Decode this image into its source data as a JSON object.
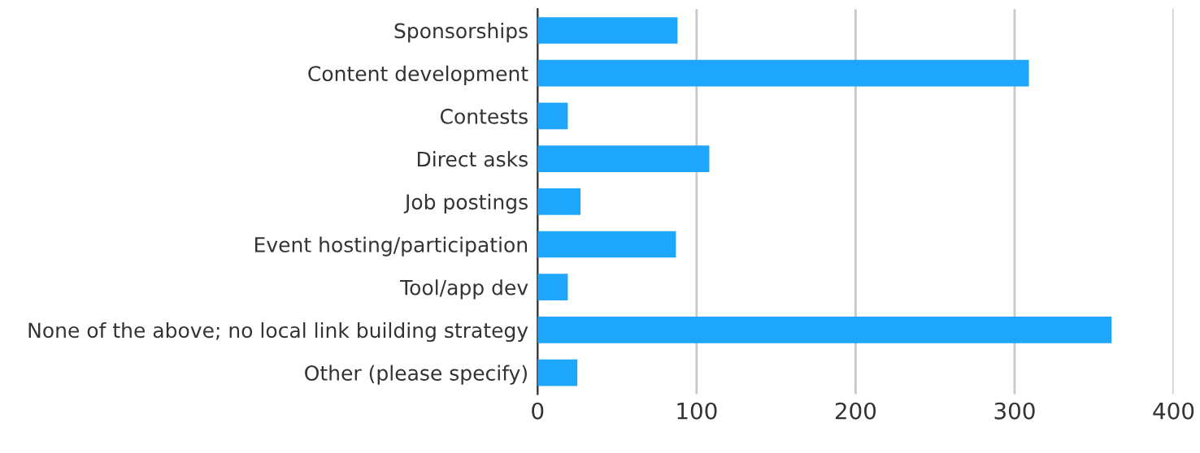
{
  "chart_data": {
    "type": "bar",
    "orientation": "horizontal",
    "categories": [
      "Sponsorships",
      "Content development",
      "Contests",
      "Direct asks",
      "Job postings",
      "Event hosting/participation",
      "Tool/app dev",
      "None of the above; no local link building strategy",
      "Other (please specify)"
    ],
    "values": [
      88,
      309,
      19,
      108,
      27,
      87,
      19,
      361,
      25
    ],
    "color": "#1ea5fc",
    "xlim": [
      0,
      400
    ],
    "xticks": [
      0,
      100,
      200,
      300,
      400
    ],
    "grid": "x"
  }
}
